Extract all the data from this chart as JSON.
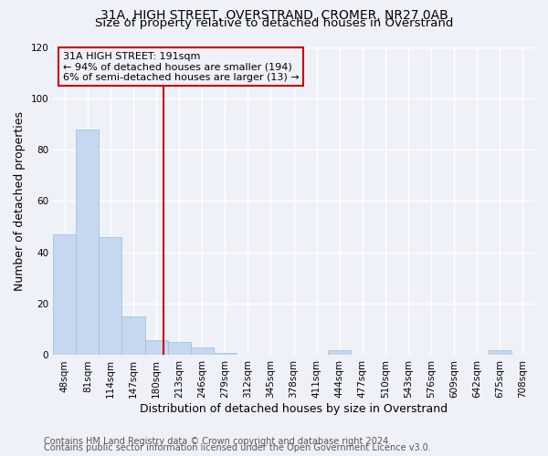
{
  "title_line1": "31A, HIGH STREET, OVERSTRAND, CROMER, NR27 0AB",
  "title_line2": "Size of property relative to detached houses in Overstrand",
  "xlabel": "Distribution of detached houses by size in Overstrand",
  "ylabel": "Number of detached properties",
  "bar_color": "#c5d8ef",
  "bar_edge_color": "#9bbcd8",
  "categories": [
    "48sqm",
    "81sqm",
    "114sqm",
    "147sqm",
    "180sqm",
    "213sqm",
    "246sqm",
    "279sqm",
    "312sqm",
    "345sqm",
    "378sqm",
    "411sqm",
    "444sqm",
    "477sqm",
    "510sqm",
    "543sqm",
    "576sqm",
    "609sqm",
    "642sqm",
    "675sqm",
    "708sqm"
  ],
  "values": [
    47,
    88,
    46,
    15,
    6,
    5,
    3,
    1,
    0,
    0,
    0,
    0,
    2,
    0,
    0,
    0,
    0,
    0,
    0,
    2,
    0
  ],
  "ylim": [
    0,
    120
  ],
  "yticks": [
    0,
    20,
    40,
    60,
    80,
    100,
    120
  ],
  "vline_x": 4.33,
  "annotation_box_text": "31A HIGH STREET: 191sqm\n← 94% of detached houses are smaller (194)\n6% of semi-detached houses are larger (13) →",
  "footer_line1": "Contains HM Land Registry data © Crown copyright and database right 2024.",
  "footer_line2": "Contains public sector information licensed under the Open Government Licence v3.0.",
  "background_color": "#eef2f8",
  "grid_color": "#ffffff",
  "vline_color": "#cc0000",
  "annotation_box_edge_color": "#cc0000",
  "title_fontsize": 10,
  "subtitle_fontsize": 9.5,
  "axis_label_fontsize": 9,
  "tick_fontsize": 7.5,
  "annotation_fontsize": 8,
  "footer_fontsize": 7
}
